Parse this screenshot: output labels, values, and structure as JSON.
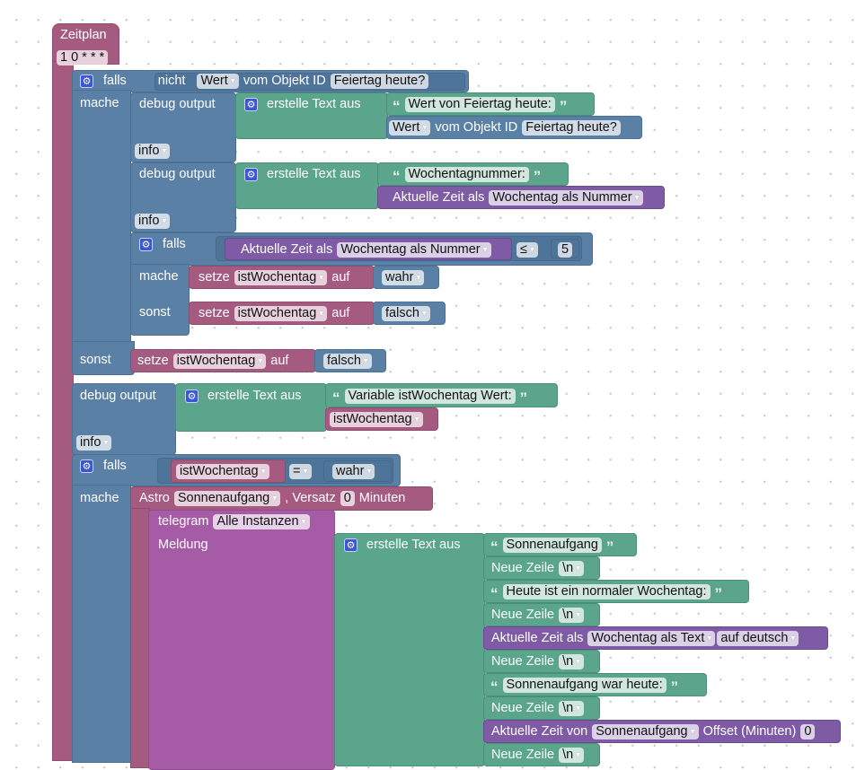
{
  "colors": {
    "event": "#a55b80",
    "logic": "#5b80a5",
    "text": "#5ba58c",
    "time": "#7f5ba5",
    "telegram": "#a55ba5"
  },
  "schedule": {
    "label": "Zeitplan",
    "cron": "1 0 * * *"
  },
  "if1": {
    "if_label": "falls",
    "not_label": "nicht",
    "value_field": "Wert",
    "of_object": "vom Objekt ID",
    "object": "Feiertag heute?",
    "do_label": "mache",
    "else_label": "sonst"
  },
  "debug1": {
    "label": "debug output",
    "create_text": "erstelle Text aus",
    "text": "Wert von Feiertag heute:",
    "value_field": "Wert",
    "of_object": "vom Objekt ID",
    "object": "Feiertag heute?",
    "level": "info"
  },
  "debug2": {
    "label": "debug output",
    "create_text": "erstelle Text aus",
    "text": "Wochentagnummer:",
    "time_label": "Aktuelle Zeit als",
    "time_format": "Wochentag als Nummer",
    "level": "info"
  },
  "if_inner": {
    "if_label": "falls",
    "time_label": "Aktuelle Zeit als",
    "time_format": "Wochentag als Nummer",
    "operator": "≤",
    "number": "5",
    "do_label": "mache",
    "else_label": "sonst",
    "set_then": {
      "set": "setze",
      "variable": "istWochentag",
      "to": "auf",
      "value": "wahr"
    },
    "set_else": {
      "set": "setze",
      "variable": "istWochentag",
      "to": "auf",
      "value": "falsch"
    }
  },
  "set_else_outer": {
    "set": "setze",
    "variable": "istWochentag",
    "to": "auf",
    "value": "falsch"
  },
  "debug3": {
    "label": "debug output",
    "create_text": "erstelle Text aus",
    "text": "Variable istWochentag Wert:",
    "variable": "istWochentag",
    "level": "info"
  },
  "if2": {
    "if_label": "falls",
    "variable": "istWochentag",
    "operator": "=",
    "value": "wahr",
    "do_label": "mache"
  },
  "astro": {
    "label": "Astro",
    "event": "Sonnenaufgang",
    "offset_label": ", Versatz",
    "offset": "0",
    "unit": "Minuten"
  },
  "telegram": {
    "label": "telegram",
    "instance": "Alle Instanzen",
    "message_label": "Meldung",
    "create_text": "erstelle Text aus",
    "parts": [
      {
        "type": "text",
        "value": "Sonnenaufgang"
      },
      {
        "type": "newline",
        "label": "Neue Zeile",
        "value": "\\n"
      },
      {
        "type": "text",
        "value": "Heute ist ein normaler Wochentag:"
      },
      {
        "type": "newline",
        "label": "Neue Zeile",
        "value": "\\n"
      },
      {
        "type": "time",
        "label": "Aktuelle Zeit als",
        "format": "Wochentag als Text",
        "language": "auf deutsch"
      },
      {
        "type": "newline",
        "label": "Neue Zeile",
        "value": "\\n"
      },
      {
        "type": "text",
        "value": "Sonnenaufgang war heute:"
      },
      {
        "type": "newline",
        "label": "Neue Zeile",
        "value": "\\n"
      },
      {
        "type": "astro_time",
        "label": "Aktuelle Zeit von",
        "event": "Sonnenaufgang",
        "offset_label": "Offset (Minuten)",
        "offset": "0"
      },
      {
        "type": "newline",
        "label": "Neue Zeile",
        "value": "\\n"
      }
    ]
  }
}
